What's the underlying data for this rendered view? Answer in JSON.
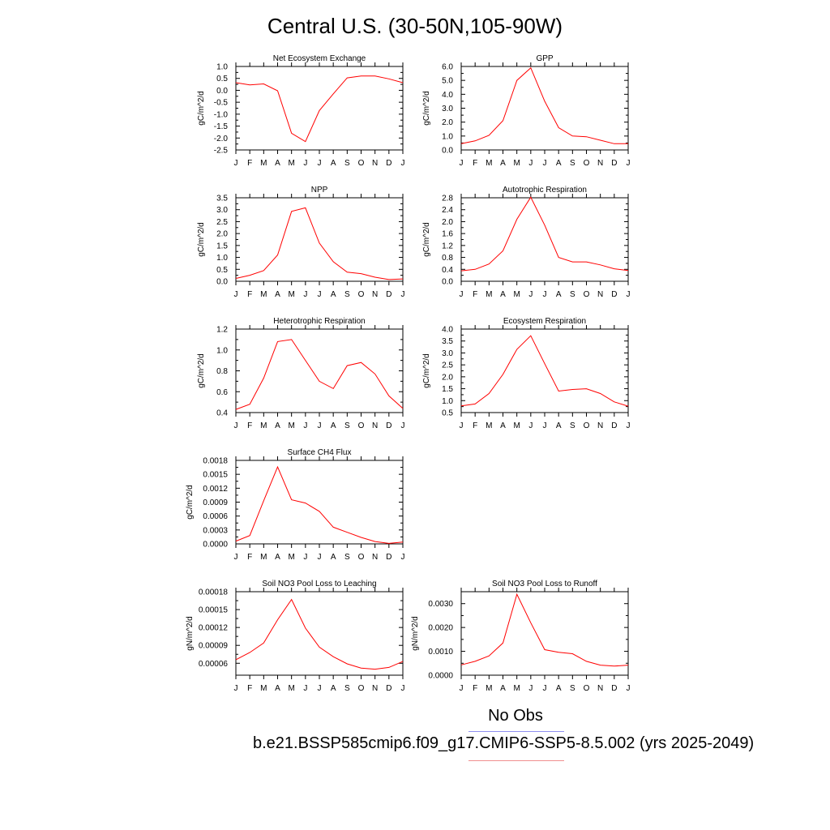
{
  "title": "Central U.S. (30-50N,105-90W)",
  "legend": {
    "obs_label": "No Obs",
    "obs_color": "#8f8ff0",
    "case_label": "b.e21.BSSP585cmip6.f09_g17.CMIP6-SSP5-8.5.002 (yrs 2025-2049)",
    "case_color": "#f08f8f"
  },
  "chart_data": [
    {
      "type": "line",
      "title": "Net Ecosystem Exchange",
      "ylabel": "gC/m^2/d",
      "x": [
        "J",
        "F",
        "M",
        "A",
        "M",
        "J",
        "J",
        "A",
        "S",
        "O",
        "N",
        "D",
        "J"
      ],
      "ylim": [
        -2.5,
        1.0
      ],
      "yticks": [
        "-2.5",
        "-2.0",
        "-1.5",
        "-1.0",
        "-0.5",
        "0.0",
        "0.5",
        "1.0"
      ],
      "grid": false,
      "series": [
        {
          "color": "#ff0000",
          "values": [
            0.32,
            0.23,
            0.27,
            -0.02,
            -1.8,
            -2.15,
            -0.85,
            -0.15,
            0.52,
            0.6,
            0.6,
            0.48,
            0.32
          ]
        }
      ]
    },
    {
      "type": "line",
      "title": "GPP",
      "ylabel": "gC/m^2/d",
      "x": [
        "J",
        "F",
        "M",
        "A",
        "M",
        "J",
        "J",
        "A",
        "S",
        "O",
        "N",
        "D",
        "J"
      ],
      "ylim": [
        0.0,
        6.0
      ],
      "yticks": [
        "0.0",
        "1.0",
        "2.0",
        "3.0",
        "4.0",
        "5.0",
        "6.0"
      ],
      "grid": false,
      "series": [
        {
          "color": "#ff0000",
          "values": [
            0.45,
            0.65,
            1.05,
            2.1,
            5.0,
            5.9,
            3.5,
            1.6,
            1.0,
            0.95,
            0.7,
            0.45,
            0.45
          ]
        }
      ]
    },
    {
      "type": "line",
      "title": "NPP",
      "ylabel": "gC/m^2/d",
      "x": [
        "J",
        "F",
        "M",
        "A",
        "M",
        "J",
        "J",
        "A",
        "S",
        "O",
        "N",
        "D",
        "J"
      ],
      "ylim": [
        0.0,
        3.5
      ],
      "yticks": [
        "0.0",
        "0.5",
        "1.0",
        "1.5",
        "2.0",
        "2.5",
        "3.0",
        "3.5"
      ],
      "grid": false,
      "series": [
        {
          "color": "#ff0000",
          "values": [
            0.12,
            0.25,
            0.45,
            1.1,
            2.93,
            3.08,
            1.6,
            0.82,
            0.38,
            0.32,
            0.17,
            0.07,
            0.1
          ]
        }
      ]
    },
    {
      "type": "line",
      "title": "Autotrophic Respiration",
      "ylabel": "gC/m^2/d",
      "x": [
        "J",
        "F",
        "M",
        "A",
        "M",
        "J",
        "J",
        "A",
        "S",
        "O",
        "N",
        "D",
        "J"
      ],
      "ylim": [
        0.0,
        2.8
      ],
      "yticks": [
        "0.0",
        "0.4",
        "0.8",
        "1.2",
        "1.6",
        "2.0",
        "2.4",
        "2.8"
      ],
      "grid": false,
      "series": [
        {
          "color": "#ff0000",
          "values": [
            0.35,
            0.4,
            0.58,
            1.02,
            2.08,
            2.82,
            1.88,
            0.8,
            0.65,
            0.65,
            0.55,
            0.42,
            0.36
          ]
        }
      ]
    },
    {
      "type": "line",
      "title": "Heterotrophic Respiration",
      "ylabel": "gC/m^2/d",
      "x": [
        "J",
        "F",
        "M",
        "A",
        "M",
        "J",
        "J",
        "A",
        "S",
        "O",
        "N",
        "D",
        "J"
      ],
      "ylim": [
        0.4,
        1.2
      ],
      "yticks": [
        "0.4",
        "0.6",
        "0.8",
        "1.0",
        "1.2"
      ],
      "grid": false,
      "series": [
        {
          "color": "#ff0000",
          "values": [
            0.43,
            0.48,
            0.73,
            1.08,
            1.1,
            0.9,
            0.7,
            0.63,
            0.85,
            0.88,
            0.77,
            0.56,
            0.44
          ]
        }
      ]
    },
    {
      "type": "line",
      "title": "Ecosystem Respiration",
      "ylabel": "gC/m^2/d",
      "x": [
        "J",
        "F",
        "M",
        "A",
        "M",
        "J",
        "J",
        "A",
        "S",
        "O",
        "N",
        "D",
        "J"
      ],
      "ylim": [
        0.5,
        4.0
      ],
      "yticks": [
        "0.5",
        "1.0",
        "1.5",
        "2.0",
        "2.5",
        "3.0",
        "3.5",
        "4.0"
      ],
      "grid": false,
      "series": [
        {
          "color": "#ff0000",
          "values": [
            0.78,
            0.86,
            1.3,
            2.1,
            3.15,
            3.72,
            2.55,
            1.4,
            1.47,
            1.5,
            1.3,
            0.95,
            0.77
          ]
        }
      ]
    },
    {
      "type": "line",
      "title": "Surface CH4 Flux",
      "ylabel": "gC/m^2/d",
      "x": [
        "J",
        "F",
        "M",
        "A",
        "M",
        "J",
        "J",
        "A",
        "S",
        "O",
        "N",
        "D",
        "J"
      ],
      "ylim": [
        0.0,
        0.0018
      ],
      "yticks": [
        "0.0000",
        "0.0003",
        "0.0006",
        "0.0009",
        "0.0012",
        "0.0015",
        "0.0018"
      ],
      "grid": false,
      "series": [
        {
          "color": "#ff0000",
          "values": [
            6e-05,
            0.00018,
            0.00093,
            0.00166,
            0.00095,
            0.00088,
            0.0007,
            0.00036,
            0.00025,
            0.00014,
            5e-05,
            1e-05,
            4e-05
          ]
        }
      ]
    },
    {
      "type": "line",
      "title": "Soil NO3 Pool Loss to Leaching",
      "ylabel": "gN/m^2/d",
      "x": [
        "J",
        "F",
        "M",
        "A",
        "M",
        "J",
        "J",
        "A",
        "S",
        "O",
        "N",
        "D",
        "J"
      ],
      "ylim": [
        4e-05,
        0.00018
      ],
      "yticks": [
        "0.00006",
        "0.00009",
        "0.00012",
        "0.00015",
        "0.00018"
      ],
      "grid": false,
      "series": [
        {
          "color": "#ff0000",
          "values": [
            6.6e-05,
            7.8e-05,
            9.4e-05,
            0.000133,
            0.000167,
            0.000119,
            8.7e-05,
            7.1e-05,
            5.9e-05,
            5.2e-05,
            5e-05,
            5.3e-05,
            6.3e-05
          ]
        }
      ]
    },
    {
      "type": "line",
      "title": "Soil NO3 Pool Loss to Runoff",
      "ylabel": "gN/m^2/d",
      "x": [
        "J",
        "F",
        "M",
        "A",
        "M",
        "J",
        "J",
        "A",
        "S",
        "O",
        "N",
        "D",
        "J"
      ],
      "ylim": [
        0.0,
        0.0035
      ],
      "yticks": [
        "0.0000",
        "0.0010",
        "0.0020",
        "0.0030"
      ],
      "grid": false,
      "series": [
        {
          "color": "#ff0000",
          "values": [
            0.00043,
            0.00058,
            0.00081,
            0.00135,
            0.00339,
            0.0022,
            0.00107,
            0.00096,
            0.0009,
            0.00058,
            0.00042,
            0.00038,
            0.00042
          ]
        }
      ]
    }
  ]
}
